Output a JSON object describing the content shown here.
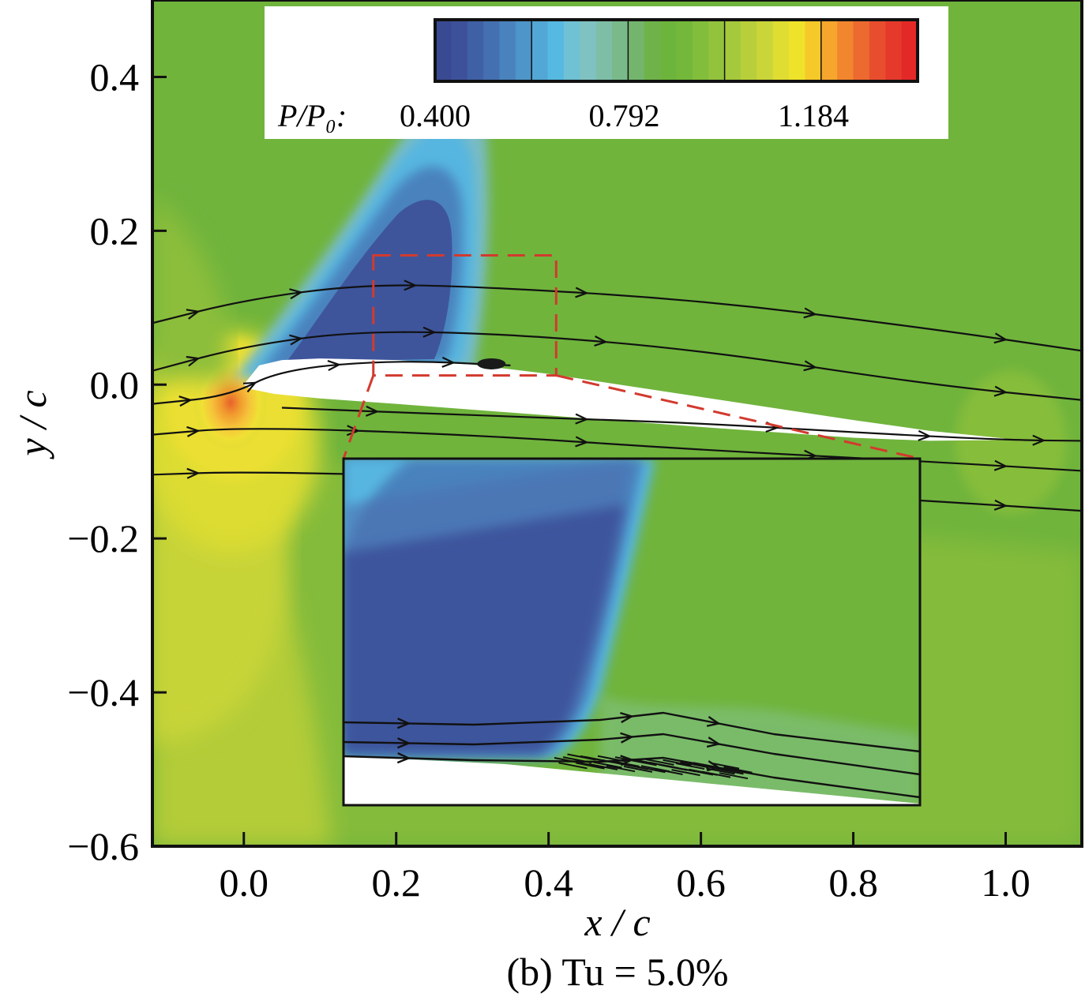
{
  "chart_data": {
    "type": "heatmap",
    "subtype": "contour-with-streamlines",
    "xlabel": "x / c",
    "ylabel": "y / c",
    "xlim": [
      -0.12,
      1.1
    ],
    "ylim": [
      -0.6,
      0.5
    ],
    "xticks": [
      0.0,
      0.2,
      0.4,
      0.6,
      0.8,
      1.0
    ],
    "xtick_labels": [
      "0.0",
      "0.2",
      "0.4",
      "0.6",
      "0.8",
      "1.0"
    ],
    "yticks": [
      0.4,
      0.2,
      0.0,
      -0.2,
      -0.4,
      -0.6
    ],
    "ytick_labels": [
      "0.4",
      "0.2",
      "0.0",
      "−0.2",
      "−0.4",
      "−0.6"
    ],
    "colorbar": {
      "label": "P/P₀:",
      "range": [
        0.4,
        1.4
      ],
      "ticks": [
        "0.400",
        "0.792",
        "1.184"
      ],
      "colors": [
        "#3a4a92",
        "#3d519a",
        "#4060a6",
        "#4470b1",
        "#4a82bd",
        "#4e95c9",
        "#52a7d6",
        "#56b9e2",
        "#6fc1d3",
        "#80c2c2",
        "#7ebea7",
        "#79b98a",
        "#74b56d",
        "#6fb249",
        "#6db43c",
        "#73b73b",
        "#82bd3c",
        "#93c33d",
        "#a5c93c",
        "#b8cf3b",
        "#cad53a",
        "#dfdc32",
        "#eee32a",
        "#f6c92a",
        "#f6a62d",
        "#f1862f",
        "#ec692f",
        "#e84e2e",
        "#e53a2b",
        "#e32927"
      ]
    },
    "caption": "(b) Tu = 5.0%",
    "airfoil": {
      "upper": [
        [
          0.0,
          0.0
        ],
        [
          0.02,
          0.025
        ],
        [
          0.05,
          0.032
        ],
        [
          0.1,
          0.034
        ],
        [
          0.2,
          0.032
        ],
        [
          0.3,
          0.026
        ],
        [
          0.4,
          0.014
        ],
        [
          0.6,
          -0.016
        ],
        [
          0.8,
          -0.046
        ],
        [
          0.9,
          -0.06
        ],
        [
          1.0,
          -0.07
        ]
      ],
      "lower": [
        [
          1.0,
          -0.072
        ],
        [
          0.9,
          -0.073
        ],
        [
          0.8,
          -0.069
        ],
        [
          0.6,
          -0.055
        ],
        [
          0.4,
          -0.04
        ],
        [
          0.2,
          -0.025
        ],
        [
          0.1,
          -0.018
        ],
        [
          0.04,
          -0.012
        ],
        [
          0.01,
          -0.006
        ],
        [
          0.0,
          0.0
        ]
      ]
    },
    "streamlines": [
      [
        [
          -0.12,
          0.08
        ],
        [
          0.0,
          0.11
        ],
        [
          0.15,
          0.13
        ],
        [
          0.3,
          0.128
        ],
        [
          0.6,
          0.11
        ],
        [
          0.9,
          0.073
        ],
        [
          1.1,
          0.044
        ]
      ],
      [
        [
          -0.12,
          0.018
        ],
        [
          0.0,
          0.05
        ],
        [
          0.15,
          0.07
        ],
        [
          0.35,
          0.066
        ],
        [
          0.6,
          0.045
        ],
        [
          0.9,
          0.0
        ],
        [
          1.1,
          -0.02
        ]
      ],
      [
        [
          -0.12,
          -0.025
        ],
        [
          -0.02,
          -0.015
        ],
        [
          0.05,
          0.02
        ],
        [
          0.2,
          0.032
        ],
        [
          0.35,
          0.025
        ]
      ],
      [
        [
          0.05,
          -0.03
        ],
        [
          0.3,
          -0.04
        ],
        [
          0.6,
          -0.05
        ],
        [
          0.8,
          -0.062
        ],
        [
          1.0,
          -0.072
        ],
        [
          1.1,
          -0.073
        ]
      ],
      [
        [
          -0.12,
          -0.065
        ],
        [
          0.0,
          -0.055
        ],
        [
          0.3,
          -0.065
        ],
        [
          0.6,
          -0.085
        ],
        [
          0.9,
          -0.1
        ],
        [
          1.1,
          -0.112
        ]
      ],
      [
        [
          -0.12,
          -0.117
        ],
        [
          0.0,
          -0.113
        ],
        [
          0.3,
          -0.12
        ],
        [
          0.6,
          -0.135
        ],
        [
          0.9,
          -0.151
        ],
        [
          1.1,
          -0.164
        ]
      ]
    ],
    "zoom_box": {
      "x": [
        0.17,
        0.41
      ],
      "y": [
        0.012,
        0.168
      ]
    },
    "separation_point": [
      0.325,
      0.027
    ],
    "legend_position": "top"
  }
}
